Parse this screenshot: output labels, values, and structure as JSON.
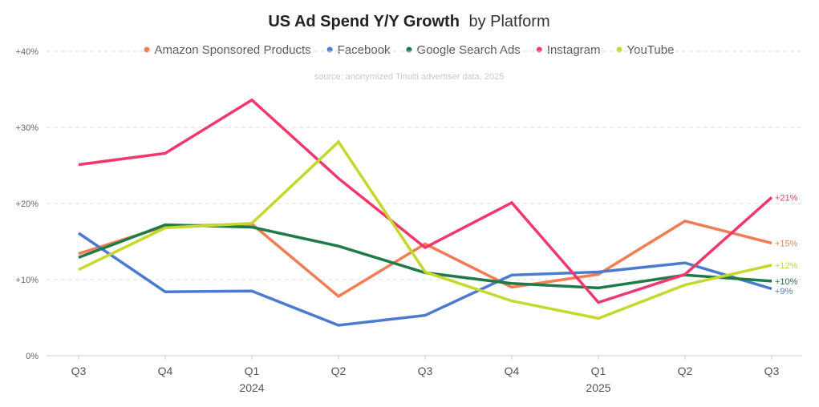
{
  "chart_data": {
    "type": "line",
    "title_bold": "US Ad Spend Y/Y Growth",
    "title_rest": "by Platform",
    "source": "source: anonymized Tinuiti advertiser data, 2025",
    "categories": [
      "Q3",
      "Q4",
      "Q1",
      "Q2",
      "Q3",
      "Q4",
      "Q1",
      "Q2",
      "Q3"
    ],
    "year_labels": [
      {
        "index": 2,
        "label": "2024"
      },
      {
        "index": 6,
        "label": "2025"
      }
    ],
    "y_ticks": [
      {
        "value": 0,
        "label": "0%"
      },
      {
        "value": 10,
        "label": "+10%"
      },
      {
        "value": 20,
        "label": "+20%"
      },
      {
        "value": 30,
        "label": "+30%"
      },
      {
        "value": 40,
        "label": "+40%"
      }
    ],
    "ylim": [
      0,
      40
    ],
    "grid": true,
    "legend_position": "top",
    "series": [
      {
        "name": "Amazon Sponsored Products",
        "color": "#f27d52",
        "values": [
          13.4,
          17.0,
          17.3,
          7.8,
          14.7,
          9.0,
          10.7,
          17.7,
          14.8
        ],
        "end_label": "+15%"
      },
      {
        "name": "Facebook",
        "color": "#4a7bd0",
        "values": [
          16.1,
          8.4,
          8.5,
          4.0,
          5.3,
          10.6,
          11.0,
          12.2,
          8.8
        ],
        "end_label": "+9%"
      },
      {
        "name": "Google Search Ads",
        "color": "#1e7a46",
        "values": [
          12.9,
          17.2,
          16.9,
          14.4,
          10.9,
          9.5,
          8.9,
          10.6,
          9.8
        ],
        "end_label": "+10%"
      },
      {
        "name": "Instagram",
        "color": "#f0386b",
        "values": [
          25.1,
          26.6,
          33.6,
          23.3,
          14.2,
          20.1,
          7.0,
          10.7,
          20.8
        ],
        "end_label": "+21%"
      },
      {
        "name": "YouTube",
        "color": "#c4d82e",
        "values": [
          11.3,
          16.8,
          17.4,
          28.1,
          11.0,
          7.2,
          4.9,
          9.3,
          11.9
        ],
        "end_label": "+12%"
      }
    ]
  }
}
